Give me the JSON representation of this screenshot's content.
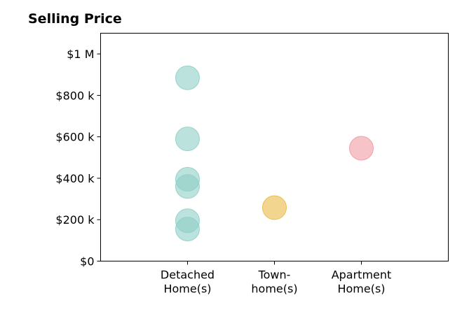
{
  "chart_data": {
    "type": "scatter",
    "title": "Selling Price",
    "xlabel": "",
    "ylabel": "",
    "ylim": [
      0,
      1100000
    ],
    "y_ticks": [
      {
        "value": 0,
        "label": "$0"
      },
      {
        "value": 200000,
        "label": "$200 k"
      },
      {
        "value": 400000,
        "label": "$400 k"
      },
      {
        "value": 600000,
        "label": "$600 k"
      },
      {
        "value": 800000,
        "label": "$800 k"
      },
      {
        "value": 1000000,
        "label": "$1 M"
      }
    ],
    "categories": [
      {
        "lines": [
          "Detached",
          "Home(s)"
        ]
      },
      {
        "lines": [
          "Town-",
          "home(s)"
        ]
      },
      {
        "lines": [
          "Apartment",
          "Home(s)"
        ]
      }
    ],
    "grid": false,
    "series": [
      {
        "category_index": 0,
        "color": "#8fcfc6",
        "values": [
          885000,
          590000,
          395000,
          360000,
          195000,
          155000
        ]
      },
      {
        "category_index": 1,
        "color": "#e9b945",
        "values": [
          258000
        ]
      },
      {
        "category_index": 2,
        "color": "#f09ba5",
        "values": [
          545000
        ]
      }
    ]
  }
}
